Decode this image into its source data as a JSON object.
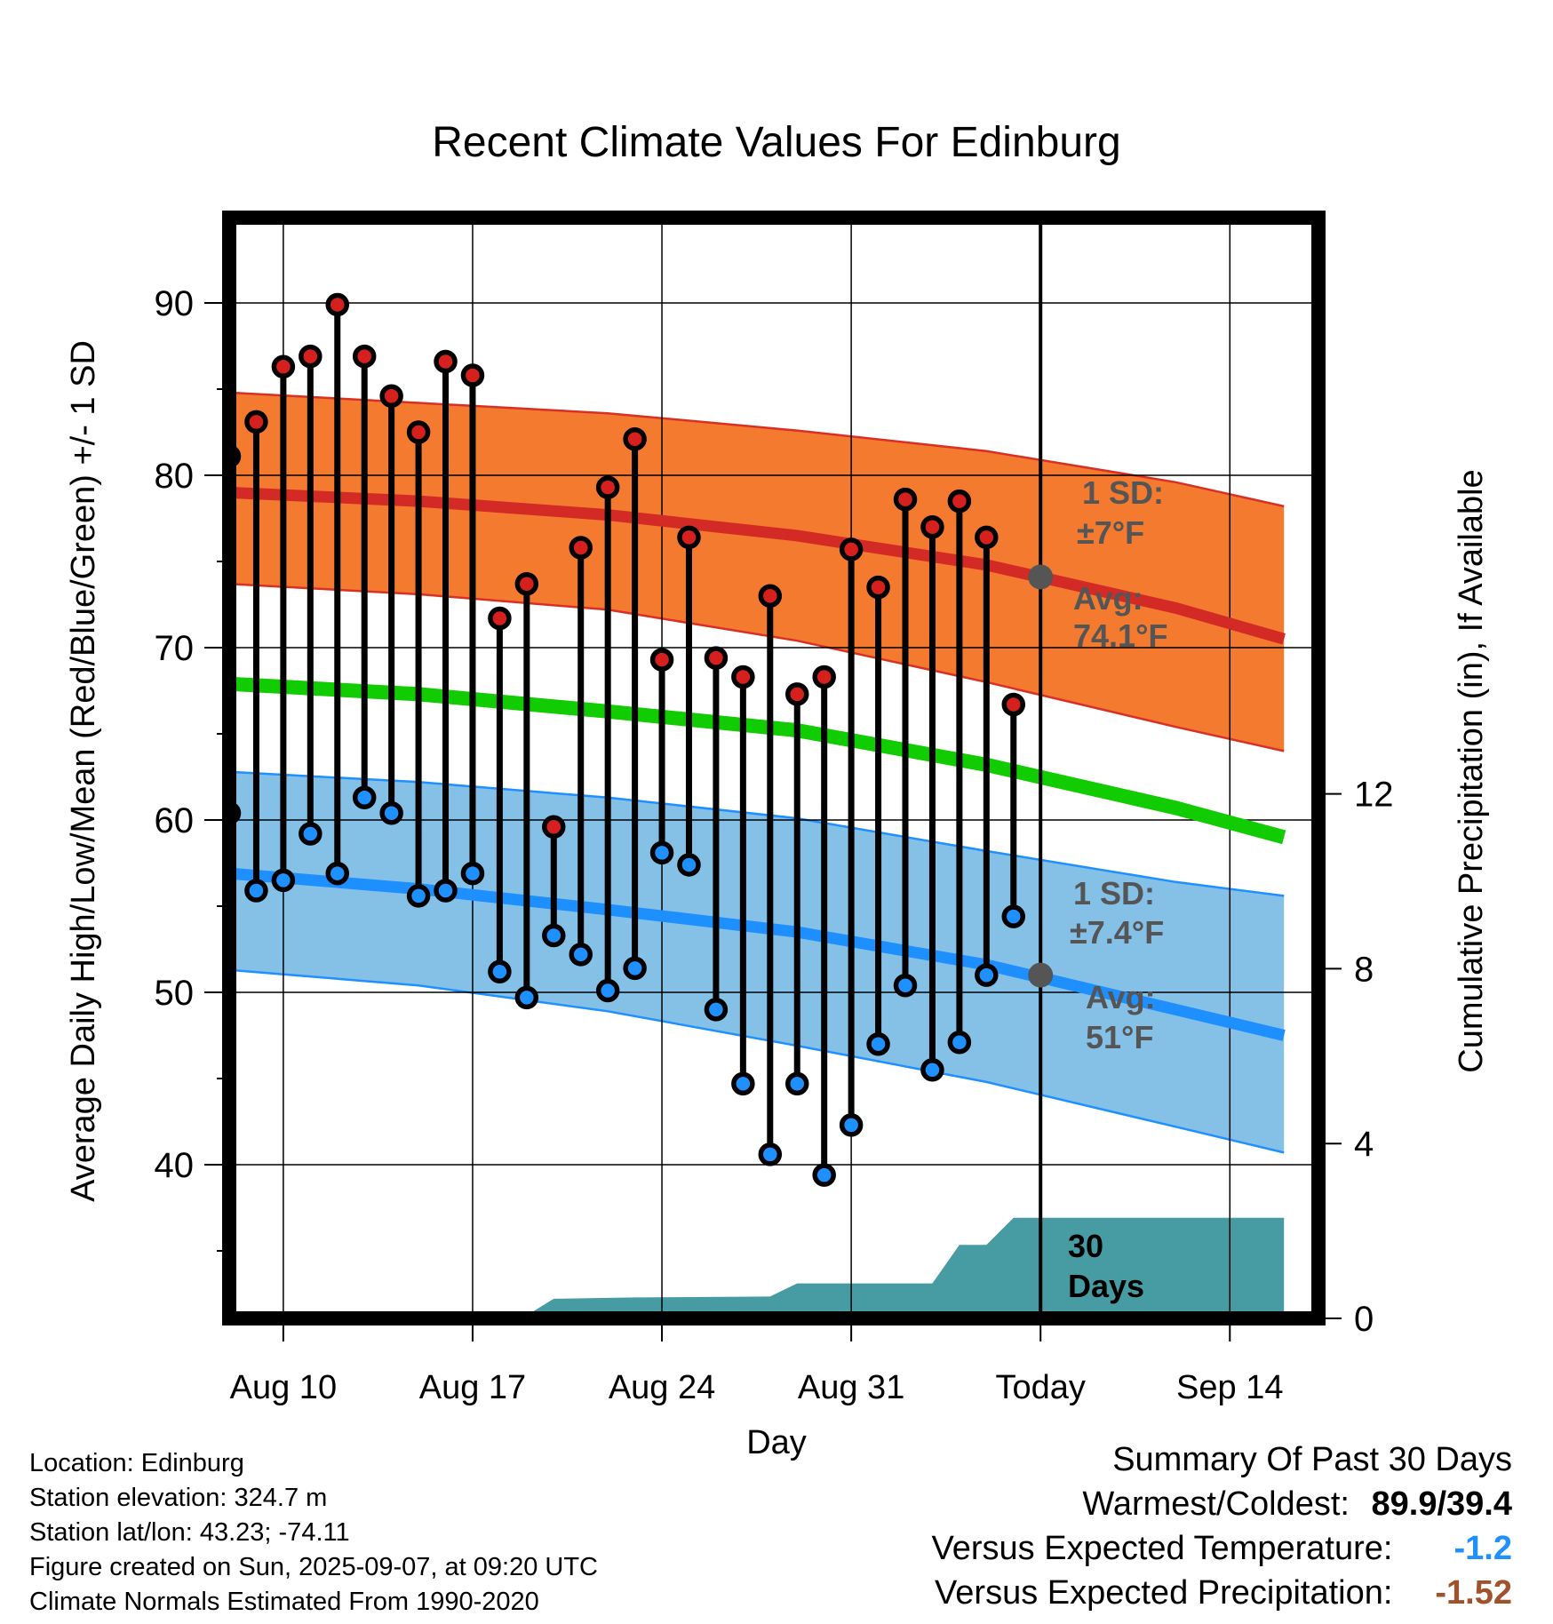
{
  "title": "Recent Climate Values For Edinburg",
  "colors": {
    "high_band": "#f47a30",
    "high_band_edge": "#d93025",
    "high_avg": "#d42a26",
    "low_band": "#85c1e7",
    "low_band_edge": "#1e90ff",
    "low_avg": "#1e8fff",
    "mean_line": "#10cc00",
    "precip": "#479ca3",
    "high_dot": "#d6201e",
    "low_dot": "#1e90ff",
    "annotation": "#555555",
    "temp_summary": "#1e90ff",
    "precip_summary": "#a0522d"
  },
  "chart_data": {
    "type": "line",
    "title": "Recent Climate Values For Edinburg",
    "xlabel": "Day",
    "ylabel_left": "Average Daily High/Low/Mean (Red/Blue/Green) +/- 1 SD",
    "ylabel_right": "Cumulative Precipitation (in), If Available",
    "ylim_left": [
      32,
      95
    ],
    "ylim_right": [
      0,
      20
    ],
    "left_ticks": [
      40,
      50,
      60,
      70,
      80,
      90
    ],
    "right_ticks": [
      0,
      4,
      8,
      12
    ],
    "x_range_days": [
      "2025-08-08",
      "2025-09-16"
    ],
    "x_ticks": [
      {
        "date": "2025-08-10",
        "label": "Aug 10"
      },
      {
        "date": "2025-08-17",
        "label": "Aug 17"
      },
      {
        "date": "2025-08-24",
        "label": "Aug 24"
      },
      {
        "date": "2025-08-31",
        "label": "Aug 31"
      },
      {
        "date": "2025-09-07",
        "label": "Today"
      },
      {
        "date": "2025-09-14",
        "label": "Sep 14"
      }
    ],
    "grid": true,
    "today": "2025-09-07",
    "dates": [
      "2025-08-08",
      "2025-08-09",
      "2025-08-10",
      "2025-08-11",
      "2025-08-12",
      "2025-08-13",
      "2025-08-14",
      "2025-08-15",
      "2025-08-16",
      "2025-08-17",
      "2025-08-18",
      "2025-08-19",
      "2025-08-20",
      "2025-08-21",
      "2025-08-22",
      "2025-08-23",
      "2025-08-24",
      "2025-08-25",
      "2025-08-26",
      "2025-08-27",
      "2025-08-28",
      "2025-08-29",
      "2025-08-30",
      "2025-08-31",
      "2025-09-01",
      "2025-09-02",
      "2025-09-03",
      "2025-09-04",
      "2025-09-05",
      "2025-09-06"
    ],
    "daily_high": [
      81.1,
      83.1,
      86.3,
      86.9,
      89.9,
      86.9,
      84.6,
      82.5,
      86.6,
      85.8,
      71.7,
      73.7,
      59.6,
      75.8,
      79.3,
      82.1,
      69.3,
      76.4,
      69.4,
      68.3,
      73.0,
      67.3,
      68.3,
      75.7,
      73.5,
      78.6,
      77.0,
      78.5,
      76.4,
      66.7
    ],
    "daily_low": [
      60.4,
      55.9,
      56.5,
      59.2,
      56.9,
      61.3,
      60.4,
      55.6,
      55.9,
      56.9,
      51.2,
      49.7,
      53.3,
      52.2,
      50.1,
      51.4,
      58.1,
      57.4,
      49.0,
      44.7,
      40.6,
      44.7,
      39.4,
      42.3,
      47.0,
      50.4,
      45.5,
      47.1,
      51.0,
      54.4
    ],
    "normal_dates": [
      "2025-08-08",
      "2025-08-15",
      "2025-08-22",
      "2025-08-29",
      "2025-09-05",
      "2025-09-12",
      "2025-09-16"
    ],
    "normal_high": [
      79.0,
      78.5,
      77.7,
      76.5,
      74.8,
      72.3,
      70.5
    ],
    "normal_high_sd_upper": [
      84.8,
      84.2,
      83.6,
      82.6,
      81.4,
      79.6,
      78.2
    ],
    "normal_high_sd_lower": [
      73.7,
      73.1,
      72.2,
      70.4,
      68.0,
      65.4,
      64.0
    ],
    "normal_mean": [
      67.9,
      67.3,
      66.3,
      65.2,
      63.2,
      60.7,
      59.0
    ],
    "normal_low": [
      56.9,
      56.0,
      54.8,
      53.5,
      51.6,
      49.0,
      47.5
    ],
    "normal_low_sd_upper": [
      62.8,
      62.2,
      61.3,
      60.1,
      58.2,
      56.4,
      55.6
    ],
    "normal_low_sd_lower": [
      51.3,
      50.4,
      48.9,
      46.9,
      44.8,
      42.2,
      40.7
    ],
    "precip_cumulative": {
      "dates": [
        "2025-08-08",
        "2025-08-11",
        "2025-08-12",
        "2025-08-19",
        "2025-08-20",
        "2025-08-23",
        "2025-08-28",
        "2025-08-29",
        "2025-09-03",
        "2025-09-04",
        "2025-09-05",
        "2025-09-06",
        "2025-09-16"
      ],
      "values": [
        0.0,
        0.0,
        0.05,
        0.07,
        0.45,
        0.48,
        0.5,
        0.8,
        0.8,
        1.68,
        1.68,
        2.3,
        2.3
      ]
    },
    "annotations": {
      "high_sd_label": "1 SD:",
      "high_sd_value": "±7°F",
      "high_avg_label": "Avg:",
      "high_avg_value": "74.1°F",
      "high_avg": 74.1,
      "low_sd_label": "1 SD:",
      "low_sd_value": "±7.4°F",
      "low_avg_label": "Avg:",
      "low_avg_value": "51°F",
      "low_avg": 51,
      "days_number": "30",
      "days_word": "Days"
    }
  },
  "info": {
    "location": "Location: Edinburg",
    "elevation": "Station elevation: 324.7 m",
    "latlon": "Station lat/lon: 43.23; -74.11",
    "created": "Figure created on Sun, 2025-09-07, at 09:20 UTC",
    "normals": "Climate Normals Estimated From 1990-2020"
  },
  "summary": {
    "title": "Summary Of Past 30 Days",
    "warm_cold_label": "Warmest/Coldest:",
    "warm_cold_value": "89.9/39.4",
    "temp_label": "Versus Expected Temperature:",
    "temp_value": "-1.2",
    "precip_label": "Versus Expected Precipitation:",
    "precip_value": "-1.52"
  }
}
